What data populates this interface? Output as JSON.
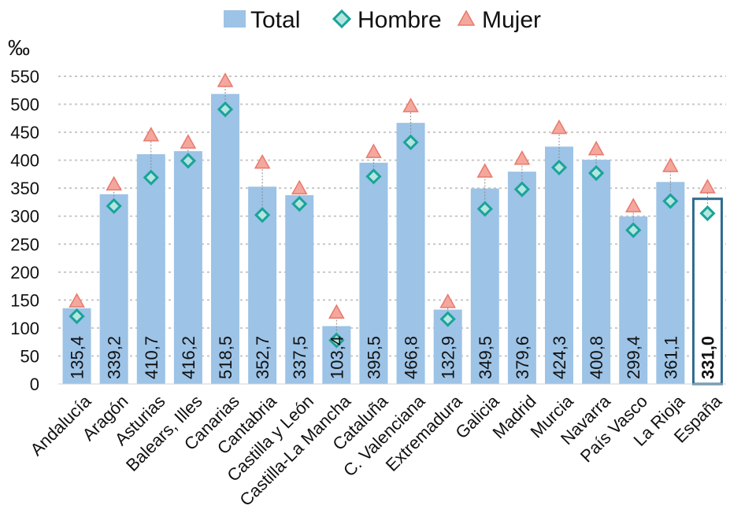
{
  "chart_data": {
    "type": "bar",
    "title": "",
    "unit_label": "‰",
    "xlabel": "",
    "ylabel": "",
    "ylim": [
      0,
      550
    ],
    "yticks": [
      0,
      50,
      100,
      150,
      200,
      250,
      300,
      350,
      400,
      450,
      500,
      550
    ],
    "grid": true,
    "legend_position": "top-center",
    "categories": [
      "Andalucía",
      "Aragón",
      "Asturias",
      "Balears, Illes",
      "Canarias",
      "Cantabria",
      "Castilla y León",
      "Castilla-La Mancha",
      "Cataluña",
      "C. Valenciana",
      "Extremadura",
      "Galicia",
      "Madrid",
      "Murcia",
      "Navarra",
      "País Vasco",
      "La Rioja",
      "España"
    ],
    "series": [
      {
        "name": "Total",
        "kind": "bar",
        "color": "#9dc3e6",
        "values": [
          135.4,
          339.2,
          410.7,
          416.2,
          518.5,
          352.7,
          337.5,
          103.4,
          395.5,
          466.8,
          132.9,
          349.5,
          379.6,
          424.3,
          400.8,
          299.4,
          361.1,
          331.0
        ],
        "labels": [
          "135,4",
          "339,2",
          "410,7",
          "416,2",
          "518,5",
          "352,7",
          "337,5",
          "103,4",
          "395,5",
          "466,8",
          "132,9",
          "349,5",
          "379,6",
          "424,3",
          "400,8",
          "299,4",
          "361,1",
          "331,0"
        ]
      },
      {
        "name": "Hombre",
        "kind": "marker",
        "marker": "diamond",
        "color": "#1aa39a",
        "values": [
          121,
          318,
          369,
          399,
          491,
          302,
          322,
          78,
          371,
          432,
          116,
          313,
          348,
          387,
          377,
          275,
          327,
          305
        ]
      },
      {
        "name": "Mujer",
        "kind": "marker",
        "marker": "triangle",
        "color": "#f4a79d",
        "values": [
          148,
          357,
          445,
          432,
          542,
          396,
          350,
          128,
          415,
          497,
          147,
          380,
          403,
          458,
          420,
          318,
          390,
          352
        ]
      }
    ],
    "highlight": {
      "category": "España",
      "style": "outlined bar, bold label",
      "outline_color": "#2e6b8f"
    }
  }
}
